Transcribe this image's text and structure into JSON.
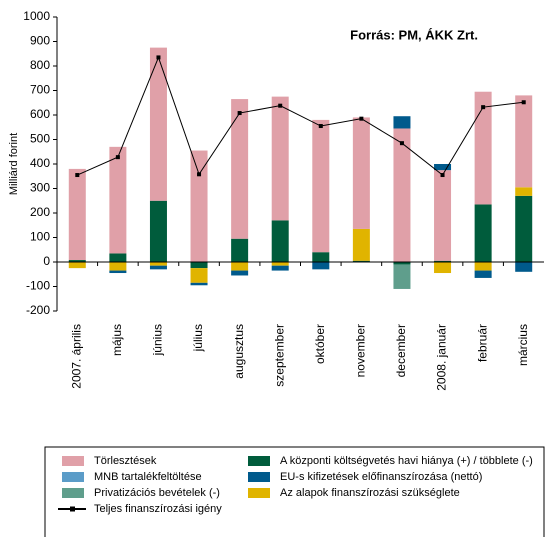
{
  "chart_data": {
    "type": "bar",
    "annotation": "Forrás:  PM, ÁKK Zrt.",
    "y_label": "Milliárd forint",
    "categories": [
      "2007. április",
      "május",
      "június",
      "július",
      "augusztus",
      "szeptember",
      "október",
      "november",
      "december",
      "2008. január",
      "február",
      "március"
    ],
    "series": [
      {
        "name": "A központi költségvetés havi hiánya (+) / többlete (-)",
        "color": "#005c3c",
        "values": [
          8,
          35,
          250,
          -25,
          95,
          170,
          40,
          5,
          -10,
          5,
          235,
          270
        ]
      },
      {
        "name": "Privatizációs bevételek (-)",
        "color": "#5f9e8c",
        "values": [
          0,
          0,
          0,
          0,
          0,
          0,
          0,
          0,
          -100,
          0,
          0,
          0
        ]
      },
      {
        "name": "Az alapok finanszírozási szükséglete",
        "color": "#e0b400",
        "values": [
          -25,
          -35,
          -15,
          -60,
          -35,
          -15,
          0,
          130,
          0,
          -45,
          -35,
          35
        ]
      },
      {
        "name": "Törlesztések",
        "color": "#e0a0a8",
        "values": [
          372,
          435,
          625,
          455,
          570,
          505,
          540,
          455,
          545,
          370,
          460,
          375
        ]
      },
      {
        "name": "EU-s kifizetések előfinanszírozása (nettó)",
        "color": "#005a8c",
        "values": [
          0,
          -10,
          -15,
          -10,
          -20,
          -20,
          -30,
          0,
          50,
          25,
          -30,
          -40
        ]
      },
      {
        "name": "MNB tartalékfeltöltése",
        "color": "#5b9cc8",
        "values": [
          0,
          0,
          0,
          0,
          0,
          0,
          0,
          0,
          0,
          0,
          0,
          0
        ]
      },
      {
        "name": "Teljes finanszírozási igény",
        "color": "#000000",
        "type": "line",
        "values": [
          355,
          428,
          835,
          358,
          608,
          638,
          555,
          585,
          485,
          355,
          632,
          652
        ]
      }
    ],
    "ylim": [
      -200,
      1000
    ],
    "yticks": [
      -200,
      -100,
      0,
      100,
      200,
      300,
      400,
      500,
      600,
      700,
      800,
      900,
      1000
    ]
  }
}
